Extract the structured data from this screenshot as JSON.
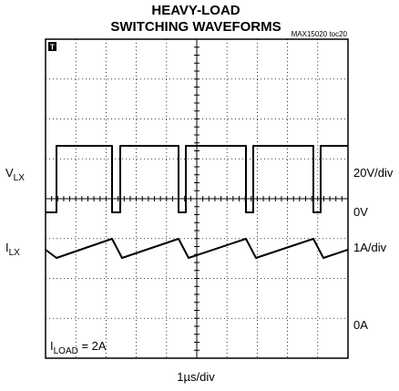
{
  "title": [
    "HEAVY-LOAD",
    "SWITCHING WAVEFORMS"
  ],
  "figure_id": "MAX15020 toc20",
  "trigger_marker": "T",
  "left_labels": [
    {
      "main": "V",
      "sub": "LX"
    },
    {
      "main": "I",
      "sub": "LX"
    }
  ],
  "right_labels": [
    "20V/div",
    "0V",
    "1A/div",
    "0A"
  ],
  "load_label": {
    "main": "I",
    "sub": "LOAD",
    "rest": " = 2A"
  },
  "time_scale": "1µs/div"
}
